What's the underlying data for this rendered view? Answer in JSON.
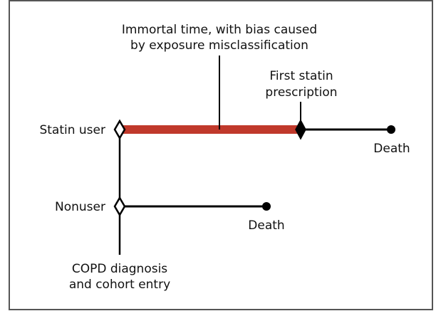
{
  "diagram": {
    "labels": {
      "immortal_time_line1": "Immortal time, with bias caused",
      "immortal_time_line2": "by exposure misclassification",
      "first_statin_line1": "First statin",
      "first_statin_line2": "prescription",
      "statin_user": "Statin user",
      "nonuser": "Nonuser",
      "death_statin": "Death",
      "death_nonuser": "Death",
      "cohort_entry_line1": "COPD diagnosis",
      "cohort_entry_line2": "and cohort entry"
    },
    "colors": {
      "immortal_time_segment": "#c0392b",
      "lines": "#000000",
      "frame": "#555555"
    }
  }
}
